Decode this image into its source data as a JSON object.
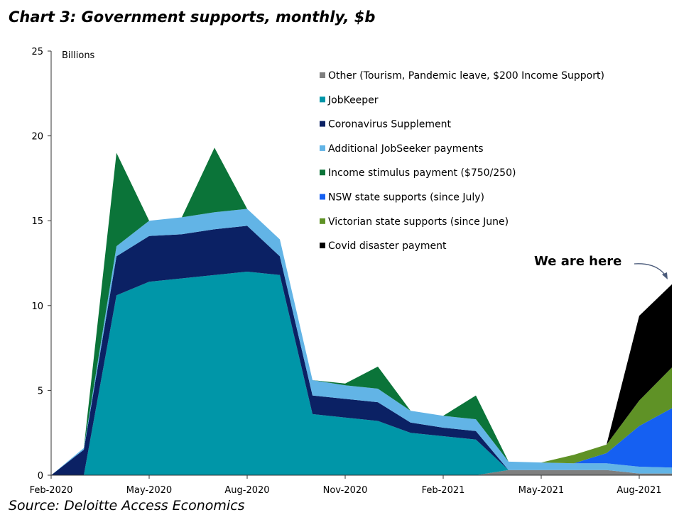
{
  "page": {
    "title": "Chart 3: Government supports, monthly, $b",
    "source": "Source: Deloitte Access Economics"
  },
  "chart_data": {
    "type": "area",
    "stacked": true,
    "title": "Chart 3: Government supports, monthly, $b",
    "ylabel": "Billions",
    "xlabel": "",
    "ylim": [
      0,
      25
    ],
    "yticks": [
      0,
      5,
      10,
      15,
      20,
      25
    ],
    "x": [
      "Feb-2020",
      "Mar-2020",
      "Apr-2020",
      "May-2020",
      "Jun-2020",
      "Jul-2020",
      "Aug-2020",
      "Sep-2020",
      "Oct-2020",
      "Nov-2020",
      "Dec-2020",
      "Jan-2021",
      "Feb-2021",
      "Mar-2021",
      "Apr-2021",
      "May-2021",
      "Jun-2021",
      "Jul-2021",
      "Aug-2021",
      "Sep-2021"
    ],
    "xtick_labels": [
      "Feb-2020",
      "May-2020",
      "Aug-2020",
      "Nov-2020",
      "Feb-2021",
      "May-2021",
      "Aug-2021"
    ],
    "xtick_index": [
      0,
      3,
      6,
      9,
      12,
      15,
      18
    ],
    "legend_position": "top-right",
    "series": [
      {
        "name": "Other (Tourism, Pandemic leave, $200 Income Support)",
        "color": "#7f7f7f",
        "values": [
          0,
          0,
          0,
          0,
          0,
          0,
          0,
          0,
          0,
          0,
          0,
          0,
          0,
          0,
          0.3,
          0.3,
          0.3,
          0.3,
          0.1,
          0.1
        ]
      },
      {
        "name": "JobKeeper",
        "color": "#0096a8",
        "values": [
          0,
          0,
          10.6,
          11.4,
          11.6,
          11.8,
          12.0,
          11.8,
          3.6,
          3.4,
          3.2,
          2.5,
          2.3,
          2.1,
          0,
          0,
          0,
          0,
          0,
          0
        ]
      },
      {
        "name": "Coronavirus Supplement",
        "color": "#0b2164",
        "values": [
          0,
          1.5,
          2.3,
          2.7,
          2.6,
          2.7,
          2.7,
          1.1,
          1.1,
          1.1,
          1.1,
          0.6,
          0.5,
          0.5,
          0,
          0,
          0,
          0,
          0,
          0
        ]
      },
      {
        "name": "Additional JobSeeker payments",
        "color": "#62b4e6",
        "values": [
          0,
          0.1,
          0.6,
          0.9,
          1.0,
          1.0,
          1.0,
          1.0,
          0.9,
          0.8,
          0.8,
          0.7,
          0.7,
          0.7,
          0.5,
          0.45,
          0.4,
          0.4,
          0.4,
          0.35
        ]
      },
      {
        "name": "Income stimulus payment ($750/250)",
        "color": "#0b7439",
        "values": [
          0,
          0,
          5.5,
          0,
          0,
          3.8,
          0,
          0,
          0,
          0.1,
          1.3,
          0,
          0,
          1.4,
          0,
          0,
          0,
          0,
          0,
          0
        ]
      },
      {
        "name": "NSW state supports (since July)",
        "color": "#1560f2",
        "values": [
          0,
          0,
          0,
          0,
          0,
          0,
          0,
          0,
          0,
          0,
          0,
          0,
          0,
          0,
          0,
          0,
          0,
          0.6,
          2.4,
          3.5
        ]
      },
      {
        "name": "Victorian state supports (since June)",
        "color": "#5f9226",
        "values": [
          0,
          0,
          0,
          0,
          0,
          0,
          0,
          0,
          0,
          0,
          0,
          0,
          0,
          0,
          0,
          0,
          0.5,
          0.5,
          1.5,
          2.4
        ]
      },
      {
        "name": "Covid disaster payment",
        "color": "#000000",
        "values": [
          0,
          0,
          0,
          0,
          0,
          0,
          0,
          0,
          0,
          0,
          0,
          0,
          0,
          0,
          0,
          0,
          0,
          0,
          5.0,
          4.9
        ]
      }
    ],
    "annotation": {
      "text": "We are here",
      "points_to": "Sep-2021"
    }
  }
}
